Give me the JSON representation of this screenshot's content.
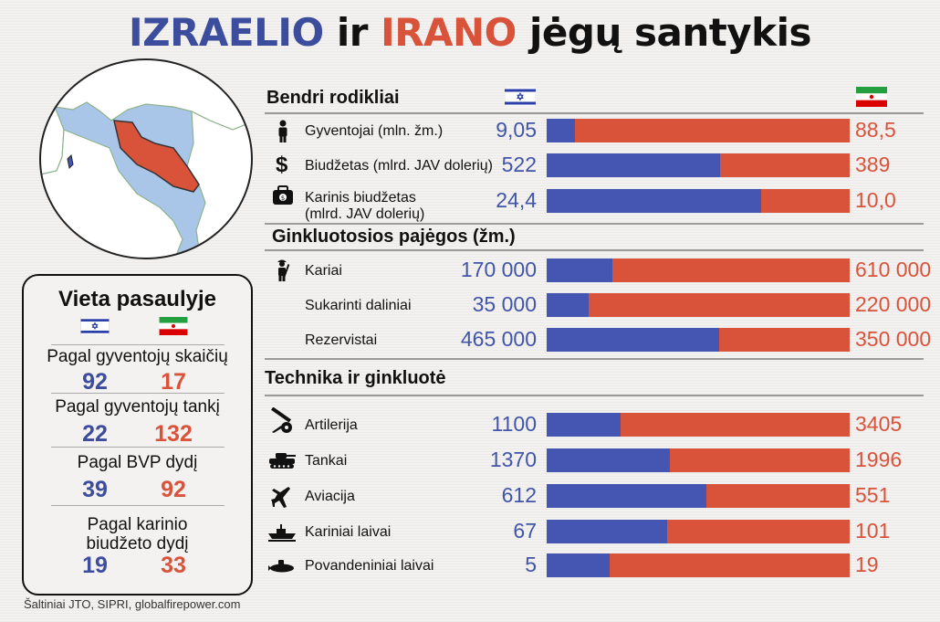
{
  "title": {
    "part1": "IZRAELIO",
    "part2": "ir",
    "part3": "IRANO",
    "part4": "jėgų santykis"
  },
  "sections": [
    {
      "heading": "Bendri rodikliai"
    },
    {
      "heading": "Ginkluotosios pajėgos (žm.)"
    },
    {
      "heading": "Technika ir ginkluotė"
    }
  ],
  "rows": [
    {
      "label": "Gyventojai (mln. žm.)",
      "icon": "person-icon",
      "israel": "9,05",
      "iran": "88,5"
    },
    {
      "label": "Biudžetas (mlrd. JAV dolerių)",
      "icon": "dollar-icon",
      "israel": "522",
      "iran": "389"
    },
    {
      "label": "Karinis biudžetas",
      "label2": "(mlrd. JAV dolerių)",
      "icon": "military-budget-icon",
      "israel": "24,4",
      "iran": "10,0"
    },
    {
      "label": "Kariai",
      "icon": "soldier-icon",
      "israel": "170 000",
      "iran": "610 000"
    },
    {
      "label": "Sukarinti daliniai",
      "icon": "",
      "israel": "35 000",
      "iran": "220 000"
    },
    {
      "label": "Rezervistai",
      "icon": "",
      "israel": "465 000",
      "iran": "350 000"
    },
    {
      "label": "Artilerija",
      "icon": "artillery-icon",
      "israel": "1100",
      "iran": "3405"
    },
    {
      "label": "Tankai",
      "icon": "tank-icon",
      "israel": "1370",
      "iran": "1996"
    },
    {
      "label": "Aviacija",
      "icon": "jet-icon",
      "israel": "612",
      "iran": "551"
    },
    {
      "label": "Kariniai laivai",
      "icon": "warship-icon",
      "israel": "67",
      "iran": "101"
    },
    {
      "label": "Povandeniniai laivai",
      "icon": "submarine-icon",
      "israel": "5",
      "iran": "19"
    }
  ],
  "world_rank": {
    "title": "Vieta pasaulyje",
    "items": [
      {
        "label": "Pagal gyventojų skaičių",
        "israel": "92",
        "iran": "17"
      },
      {
        "label": "Pagal gyventojų tankį",
        "israel": "22",
        "iran": "132"
      },
      {
        "label": "Pagal BVP dydį",
        "israel": "39",
        "iran": "92"
      },
      {
        "label": "Pagal karinio",
        "label2": "biudžeto dydį",
        "israel": "19",
        "iran": "33"
      }
    ]
  },
  "sources": "Šaltiniai JTO, SIPRI, globalfirepower.com",
  "colors": {
    "israel": "#4456b2",
    "iran": "#d9533a",
    "israel_text": "#3d4d9d"
  },
  "chart_data": {
    "type": "bar",
    "orientation": "horizontal",
    "stacked": "100%",
    "categories": [
      "Gyventojai (mln. žm.)",
      "Biudžetas (mlrd. JAV dolerių)",
      "Karinis biudžetas (mlrd. JAV dolerių)",
      "Kariai",
      "Sukarinti daliniai",
      "Rezervistai",
      "Artilerija",
      "Tankai",
      "Aviacija",
      "Kariniai laivai",
      "Povandeniniai laivai"
    ],
    "series": [
      {
        "values": [
          9.05,
          522,
          24.4,
          170000,
          35000,
          465000,
          1100,
          1370,
          612,
          67,
          5
        ]
      },
      {
        "values": [
          88.5,
          389,
          10.0,
          610000,
          220000,
          350000,
          3405,
          1996,
          551,
          101,
          19
        ]
      }
    ]
  }
}
